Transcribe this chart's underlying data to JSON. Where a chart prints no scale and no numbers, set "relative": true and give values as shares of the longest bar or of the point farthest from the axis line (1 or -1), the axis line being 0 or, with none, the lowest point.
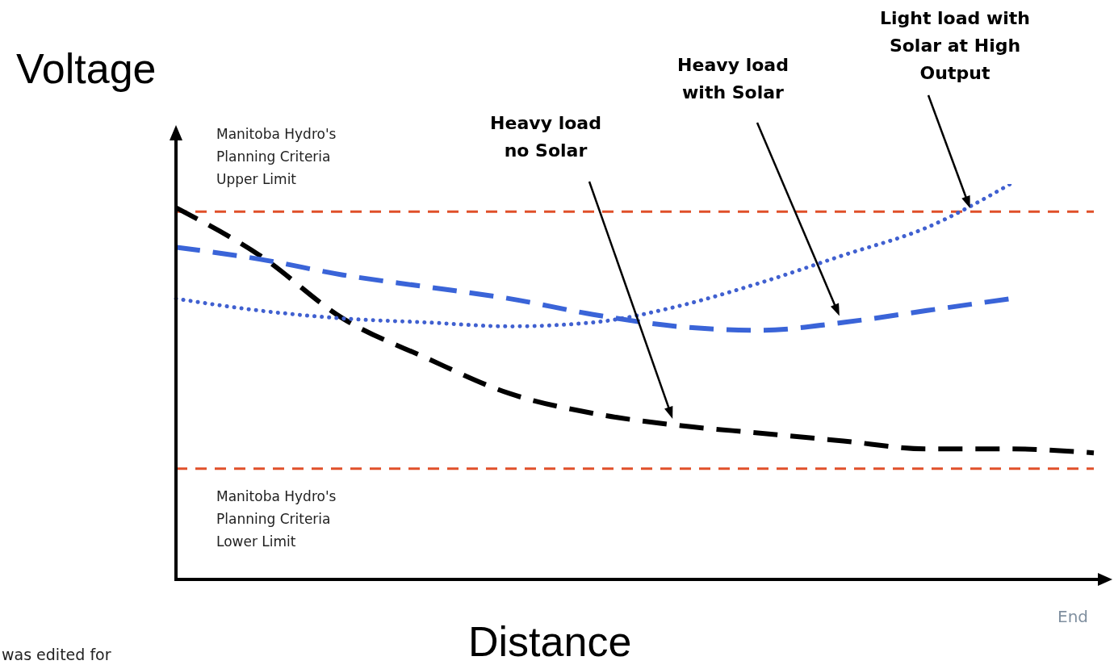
{
  "chart_data": {
    "type": "line",
    "relative": true,
    "ylabel": "Voltage",
    "xlabel": "Distance",
    "marker": "none",
    "categories": [
      null,
      null,
      null,
      null,
      null,
      null,
      null,
      null,
      null,
      null,
      null,
      null
    ],
    "series": [
      {
        "name": "Heavy load no Solar",
        "color": "#000000",
        "line_style": "dashed",
        "values": [
          0.94,
          0.82,
          0.66,
          0.56,
          0.47,
          0.42,
          0.39,
          0.37,
          0.35,
          0.33,
          0.33,
          0.32
        ]
      },
      {
        "name": "Heavy load with Solar",
        "color": "#3a64d8",
        "line_style": "dashed",
        "values": [
          0.84,
          0.81,
          0.77,
          0.74,
          0.71,
          0.67,
          0.64,
          0.63,
          0.65,
          0.68,
          0.71,
          null
        ]
      },
      {
        "name": "Light load with Solar at High Output",
        "color": "#4060d0",
        "line_style": "dotted",
        "values": [
          0.71,
          0.68,
          0.66,
          0.65,
          0.64,
          0.65,
          0.69,
          0.75,
          0.82,
          0.89,
          1,
          null
        ]
      }
    ],
    "ref_lines": [
      {
        "axis": "y",
        "value": 0.93,
        "label": "Manitoba Hydro's Planning Criteria Upper Limit",
        "color": "#e0502a",
        "line_style": "dashed"
      },
      {
        "axis": "y",
        "value": 0.28,
        "label": "Manitoba Hydro's Planning Criteria Lower Limit",
        "color": "#e0502a",
        "line_style": "dashed"
      }
    ],
    "annotations": [
      "End",
      "was edited for"
    ]
  }
}
